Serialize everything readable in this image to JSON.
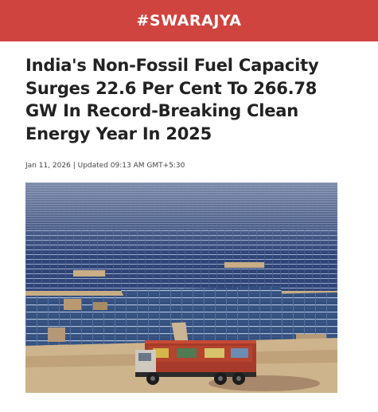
{
  "header": {
    "logo_text": "#SWARAJYA",
    "background_color": "#d04440"
  },
  "article": {
    "headline": "India's Non-Fossil Fuel Capacity Surges 22.6 Per Cent To 266.78 GW In Record-Breaking Clean Energy Year In 2025",
    "date": "Jan 11, 2026",
    "separator": "|",
    "updated": "Updated 09:13 AM GMT+5:30"
  },
  "image": {
    "subject": "solar-farm-with-truck-photo"
  }
}
